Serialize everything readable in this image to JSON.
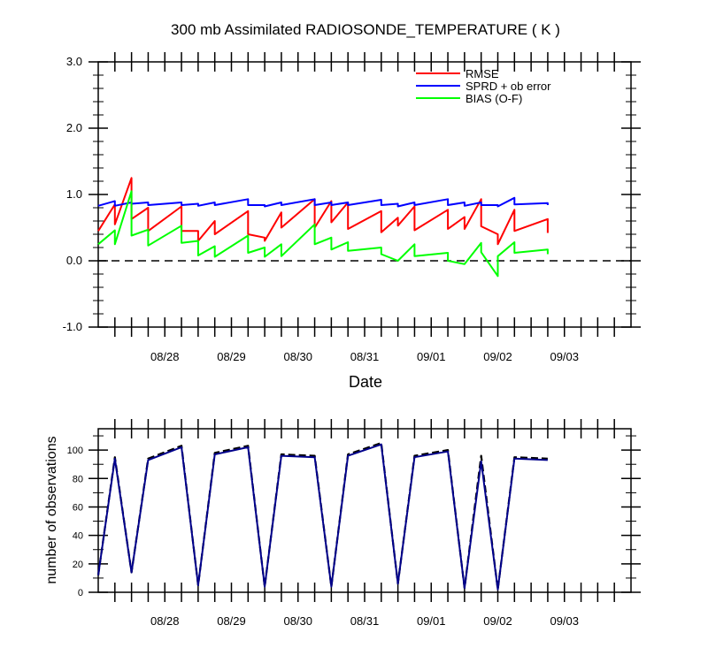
{
  "chart_data": [
    {
      "type": "line",
      "title": "300 mb Assimilated RADIOSONDE_TEMPERATURE ( K )",
      "xlabel": "Date",
      "ylabel": "",
      "x_range": [
        0,
        8
      ],
      "ylim": [
        -1.0,
        3.0
      ],
      "y_ticks": [
        -1.0,
        0.0,
        1.0,
        2.0,
        3.0
      ],
      "y_tick_labels": [
        "-1.0",
        "0.0",
        "1.0",
        "2.0",
        "3.0"
      ],
      "x_tick_labels": [
        {
          "x": 1.0,
          "label": "08/28"
        },
        {
          "x": 2.0,
          "label": "08/29"
        },
        {
          "x": 3.0,
          "label": "08/30"
        },
        {
          "x": 4.0,
          "label": "08/31"
        },
        {
          "x": 5.0,
          "label": "09/01"
        },
        {
          "x": 6.0,
          "label": "09/02"
        },
        {
          "x": 7.0,
          "label": "09/03"
        }
      ],
      "major_tick_interval": 0.25,
      "reference_line": 0.0,
      "legend_position": "top-right",
      "series": [
        {
          "name": "RMSE",
          "color": "#ff0000",
          "points": [
            [
              0.0,
              0.45
            ],
            [
              0.25,
              0.85
            ],
            [
              0.25,
              0.55
            ],
            [
              0.5,
              1.25
            ],
            [
              0.5,
              0.63
            ],
            [
              0.75,
              0.8
            ],
            [
              0.75,
              0.45
            ],
            [
              1.25,
              0.82
            ],
            [
              1.25,
              0.45
            ],
            [
              1.5,
              0.45
            ],
            [
              1.5,
              0.3
            ],
            [
              1.75,
              0.6
            ],
            [
              1.75,
              0.4
            ],
            [
              2.25,
              0.75
            ],
            [
              2.25,
              0.4
            ],
            [
              2.5,
              0.35
            ],
            [
              2.5,
              0.3
            ],
            [
              2.75,
              0.73
            ],
            [
              2.75,
              0.5
            ],
            [
              3.25,
              0.93
            ],
            [
              3.25,
              0.5
            ],
            [
              3.5,
              0.9
            ],
            [
              3.5,
              0.58
            ],
            [
              3.75,
              0.88
            ],
            [
              3.75,
              0.48
            ],
            [
              4.25,
              0.75
            ],
            [
              4.25,
              0.43
            ],
            [
              4.5,
              0.65
            ],
            [
              4.5,
              0.53
            ],
            [
              4.75,
              0.82
            ],
            [
              4.75,
              0.46
            ],
            [
              5.25,
              0.77
            ],
            [
              5.25,
              0.48
            ],
            [
              5.5,
              0.66
            ],
            [
              5.5,
              0.48
            ],
            [
              5.75,
              0.93
            ],
            [
              5.75,
              0.52
            ],
            [
              6.0,
              0.4
            ],
            [
              6.0,
              0.25
            ],
            [
              6.25,
              0.77
            ],
            [
              6.25,
              0.45
            ],
            [
              6.75,
              0.63
            ],
            [
              6.75,
              0.42
            ]
          ]
        },
        {
          "name": "SPRD + ob error",
          "color": "#0000ff",
          "points": [
            [
              0.0,
              0.83
            ],
            [
              0.25,
              0.9
            ],
            [
              0.25,
              0.83
            ],
            [
              0.5,
              0.88
            ],
            [
              0.5,
              0.86
            ],
            [
              0.75,
              0.88
            ],
            [
              0.75,
              0.84
            ],
            [
              1.25,
              0.88
            ],
            [
              1.25,
              0.84
            ],
            [
              1.5,
              0.86
            ],
            [
              1.5,
              0.83
            ],
            [
              1.75,
              0.88
            ],
            [
              1.75,
              0.84
            ],
            [
              2.25,
              0.93
            ],
            [
              2.25,
              0.84
            ],
            [
              2.5,
              0.84
            ],
            [
              2.5,
              0.82
            ],
            [
              2.75,
              0.88
            ],
            [
              2.75,
              0.84
            ],
            [
              3.25,
              0.93
            ],
            [
              3.25,
              0.84
            ],
            [
              3.5,
              0.88
            ],
            [
              3.5,
              0.84
            ],
            [
              3.75,
              0.88
            ],
            [
              3.75,
              0.84
            ],
            [
              4.25,
              0.92
            ],
            [
              4.25,
              0.84
            ],
            [
              4.5,
              0.86
            ],
            [
              4.5,
              0.82
            ],
            [
              4.75,
              0.88
            ],
            [
              4.75,
              0.84
            ],
            [
              5.25,
              0.93
            ],
            [
              5.25,
              0.84
            ],
            [
              5.5,
              0.88
            ],
            [
              5.5,
              0.83
            ],
            [
              5.75,
              0.88
            ],
            [
              5.75,
              0.84
            ],
            [
              6.0,
              0.84
            ],
            [
              6.0,
              0.82
            ],
            [
              6.25,
              0.95
            ],
            [
              6.25,
              0.85
            ],
            [
              6.75,
              0.87
            ],
            [
              6.75,
              0.84
            ]
          ]
        },
        {
          "name": "BIAS (O-F)",
          "color": "#00ff00",
          "points": [
            [
              0.0,
              0.25
            ],
            [
              0.25,
              0.46
            ],
            [
              0.25,
              0.25
            ],
            [
              0.5,
              1.05
            ],
            [
              0.5,
              0.38
            ],
            [
              0.75,
              0.47
            ],
            [
              0.75,
              0.23
            ],
            [
              1.25,
              0.53
            ],
            [
              1.25,
              0.27
            ],
            [
              1.5,
              0.3
            ],
            [
              1.5,
              0.08
            ],
            [
              1.75,
              0.22
            ],
            [
              1.75,
              0.06
            ],
            [
              2.25,
              0.38
            ],
            [
              2.25,
              0.12
            ],
            [
              2.5,
              0.2
            ],
            [
              2.5,
              0.06
            ],
            [
              2.75,
              0.25
            ],
            [
              2.75,
              0.07
            ],
            [
              3.25,
              0.55
            ],
            [
              3.25,
              0.25
            ],
            [
              3.5,
              0.35
            ],
            [
              3.5,
              0.17
            ],
            [
              3.75,
              0.28
            ],
            [
              3.75,
              0.15
            ],
            [
              4.25,
              0.2
            ],
            [
              4.25,
              0.1
            ],
            [
              4.5,
              0.0
            ],
            [
              4.75,
              0.25
            ],
            [
              4.75,
              0.07
            ],
            [
              5.25,
              0.12
            ],
            [
              5.25,
              0.0
            ],
            [
              5.5,
              -0.05
            ],
            [
              5.75,
              0.27
            ],
            [
              5.75,
              0.13
            ],
            [
              6.0,
              -0.23
            ],
            [
              6.0,
              0.07
            ],
            [
              6.25,
              0.28
            ],
            [
              6.25,
              0.12
            ],
            [
              6.75,
              0.17
            ],
            [
              6.75,
              0.1
            ]
          ]
        }
      ]
    },
    {
      "type": "line",
      "title": "",
      "xlabel": "",
      "ylabel": "number of observations",
      "x_range": [
        0,
        8
      ],
      "ylim": [
        0,
        115
      ],
      "y_ticks": [
        0,
        20,
        40,
        60,
        80,
        100
      ],
      "y_tick_labels": [
        "0",
        "20",
        "40",
        "60",
        "80",
        "100"
      ],
      "x_tick_labels": [
        {
          "x": 1.0,
          "label": "08/28"
        },
        {
          "x": 2.0,
          "label": "08/29"
        },
        {
          "x": 3.0,
          "label": "08/30"
        },
        {
          "x": 4.0,
          "label": "08/31"
        },
        {
          "x": 5.0,
          "label": "09/01"
        },
        {
          "x": 6.0,
          "label": "09/02"
        },
        {
          "x": 7.0,
          "label": "09/03"
        }
      ],
      "major_tick_interval": 0.25,
      "series": [
        {
          "name": "observations (dashed)",
          "color": "#000000",
          "dashed": true,
          "points": [
            [
              0.0,
              12
            ],
            [
              0.25,
              95
            ],
            [
              0.5,
              14
            ],
            [
              0.75,
              94
            ],
            [
              1.25,
              103
            ],
            [
              1.5,
              5
            ],
            [
              1.75,
              98
            ],
            [
              2.25,
              103
            ],
            [
              2.5,
              4
            ],
            [
              2.75,
              97
            ],
            [
              3.25,
              96
            ],
            [
              3.5,
              4
            ],
            [
              3.75,
              97
            ],
            [
              4.25,
              105
            ],
            [
              4.5,
              6
            ],
            [
              4.75,
              96
            ],
            [
              5.25,
              100
            ],
            [
              5.5,
              3
            ],
            [
              5.75,
              96
            ],
            [
              6.0,
              2
            ],
            [
              6.25,
              95
            ],
            [
              6.75,
              94
            ]
          ]
        },
        {
          "name": "observations (solid)",
          "color": "#00008b",
          "dashed": false,
          "points": [
            [
              0.0,
              12
            ],
            [
              0.25,
              94
            ],
            [
              0.5,
              14
            ],
            [
              0.75,
              93
            ],
            [
              1.25,
              102
            ],
            [
              1.5,
              5
            ],
            [
              1.75,
              97
            ],
            [
              2.25,
              102
            ],
            [
              2.5,
              4
            ],
            [
              2.75,
              96
            ],
            [
              3.25,
              95
            ],
            [
              3.5,
              4
            ],
            [
              3.75,
              96
            ],
            [
              4.25,
              104
            ],
            [
              4.5,
              6
            ],
            [
              4.75,
              95
            ],
            [
              5.25,
              99
            ],
            [
              5.5,
              3
            ],
            [
              5.75,
              92
            ],
            [
              6.0,
              2
            ],
            [
              6.25,
              94
            ],
            [
              6.75,
              93
            ]
          ]
        }
      ]
    }
  ]
}
